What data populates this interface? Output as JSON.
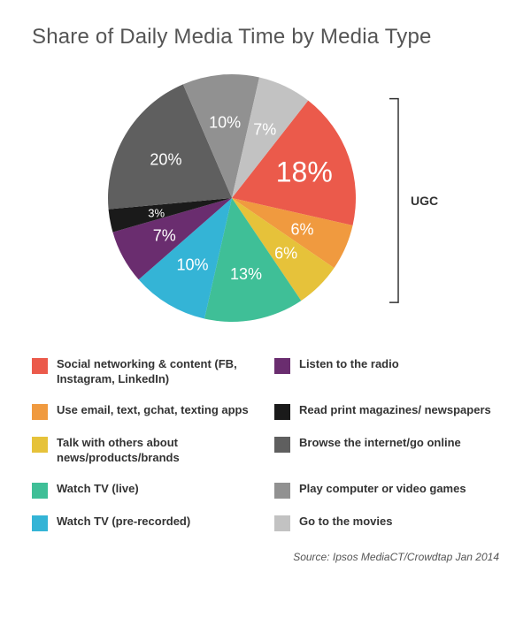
{
  "chart": {
    "type": "pie",
    "title": "Share of Daily Media Time by Media Type",
    "title_fontsize": 24,
    "title_color": "#555555",
    "background_color": "#ffffff",
    "radius": 140,
    "label_fontsize_big": 32,
    "label_fontsize_med": 18,
    "label_fontsize_sm": 13,
    "label_color": "#ffffff",
    "start_angle_deg": -52,
    "annotation": {
      "text": "UGC",
      "covers_slices": [
        0,
        1,
        2
      ],
      "fontsize": 14,
      "fontweight": 700,
      "color": "#333333",
      "bracket_color": "#333333",
      "bracket_stroke_width": 1.5
    },
    "slices": [
      {
        "id": "social",
        "pct": 18,
        "label": "18%",
        "label_size": "big",
        "color": "#eb5a4b",
        "legend": "Social networking & content (FB, Instagram, LinkedIn)"
      },
      {
        "id": "email",
        "pct": 6,
        "label": "6%",
        "label_size": "med",
        "color": "#f09a3f",
        "legend": "Use email, text, gchat, texting apps"
      },
      {
        "id": "talk",
        "pct": 6,
        "label": "6%",
        "label_size": "med",
        "color": "#e6c23a",
        "legend": "Talk with others about news/products/brands"
      },
      {
        "id": "tv_live",
        "pct": 13,
        "label": "13%",
        "label_size": "med",
        "color": "#3fbf97",
        "legend": "Watch TV (live)"
      },
      {
        "id": "tv_rec",
        "pct": 10,
        "label": "10%",
        "label_size": "med",
        "color": "#34b4d6",
        "legend": "Watch TV (pre-recorded)"
      },
      {
        "id": "radio",
        "pct": 7,
        "label": "7%",
        "label_size": "med",
        "color": "#6a2d6f",
        "legend": "Listen to the radio"
      },
      {
        "id": "print",
        "pct": 3,
        "label": "3%",
        "label_size": "sm",
        "color": "#1a1a1a",
        "legend": "Read print magazines/ newspapers"
      },
      {
        "id": "browse",
        "pct": 20,
        "label": "20%",
        "label_size": "med",
        "color": "#5f5f5f",
        "legend": "Browse the internet/go online"
      },
      {
        "id": "games",
        "pct": 10,
        "label": "10%",
        "label_size": "med",
        "color": "#919191",
        "legend": "Play computer or video games"
      },
      {
        "id": "movies",
        "pct": 7,
        "label": "7%",
        "label_size": "med",
        "color": "#c2c2c2",
        "legend": "Go to the movies"
      }
    ],
    "legend": {
      "swatch_size": 18,
      "fontsize": 13,
      "fontweight": 700,
      "text_color": "#333333",
      "columns": 2,
      "column_left_ids": [
        "social",
        "email",
        "talk",
        "tv_live",
        "tv_rec"
      ],
      "column_right_ids": [
        "radio",
        "print",
        "browse",
        "games",
        "movies"
      ]
    },
    "source_text": "Source: Ipsos MediaCT/Crowdtap Jan 2014",
    "source_fontsize": 12,
    "source_color": "#555555"
  }
}
